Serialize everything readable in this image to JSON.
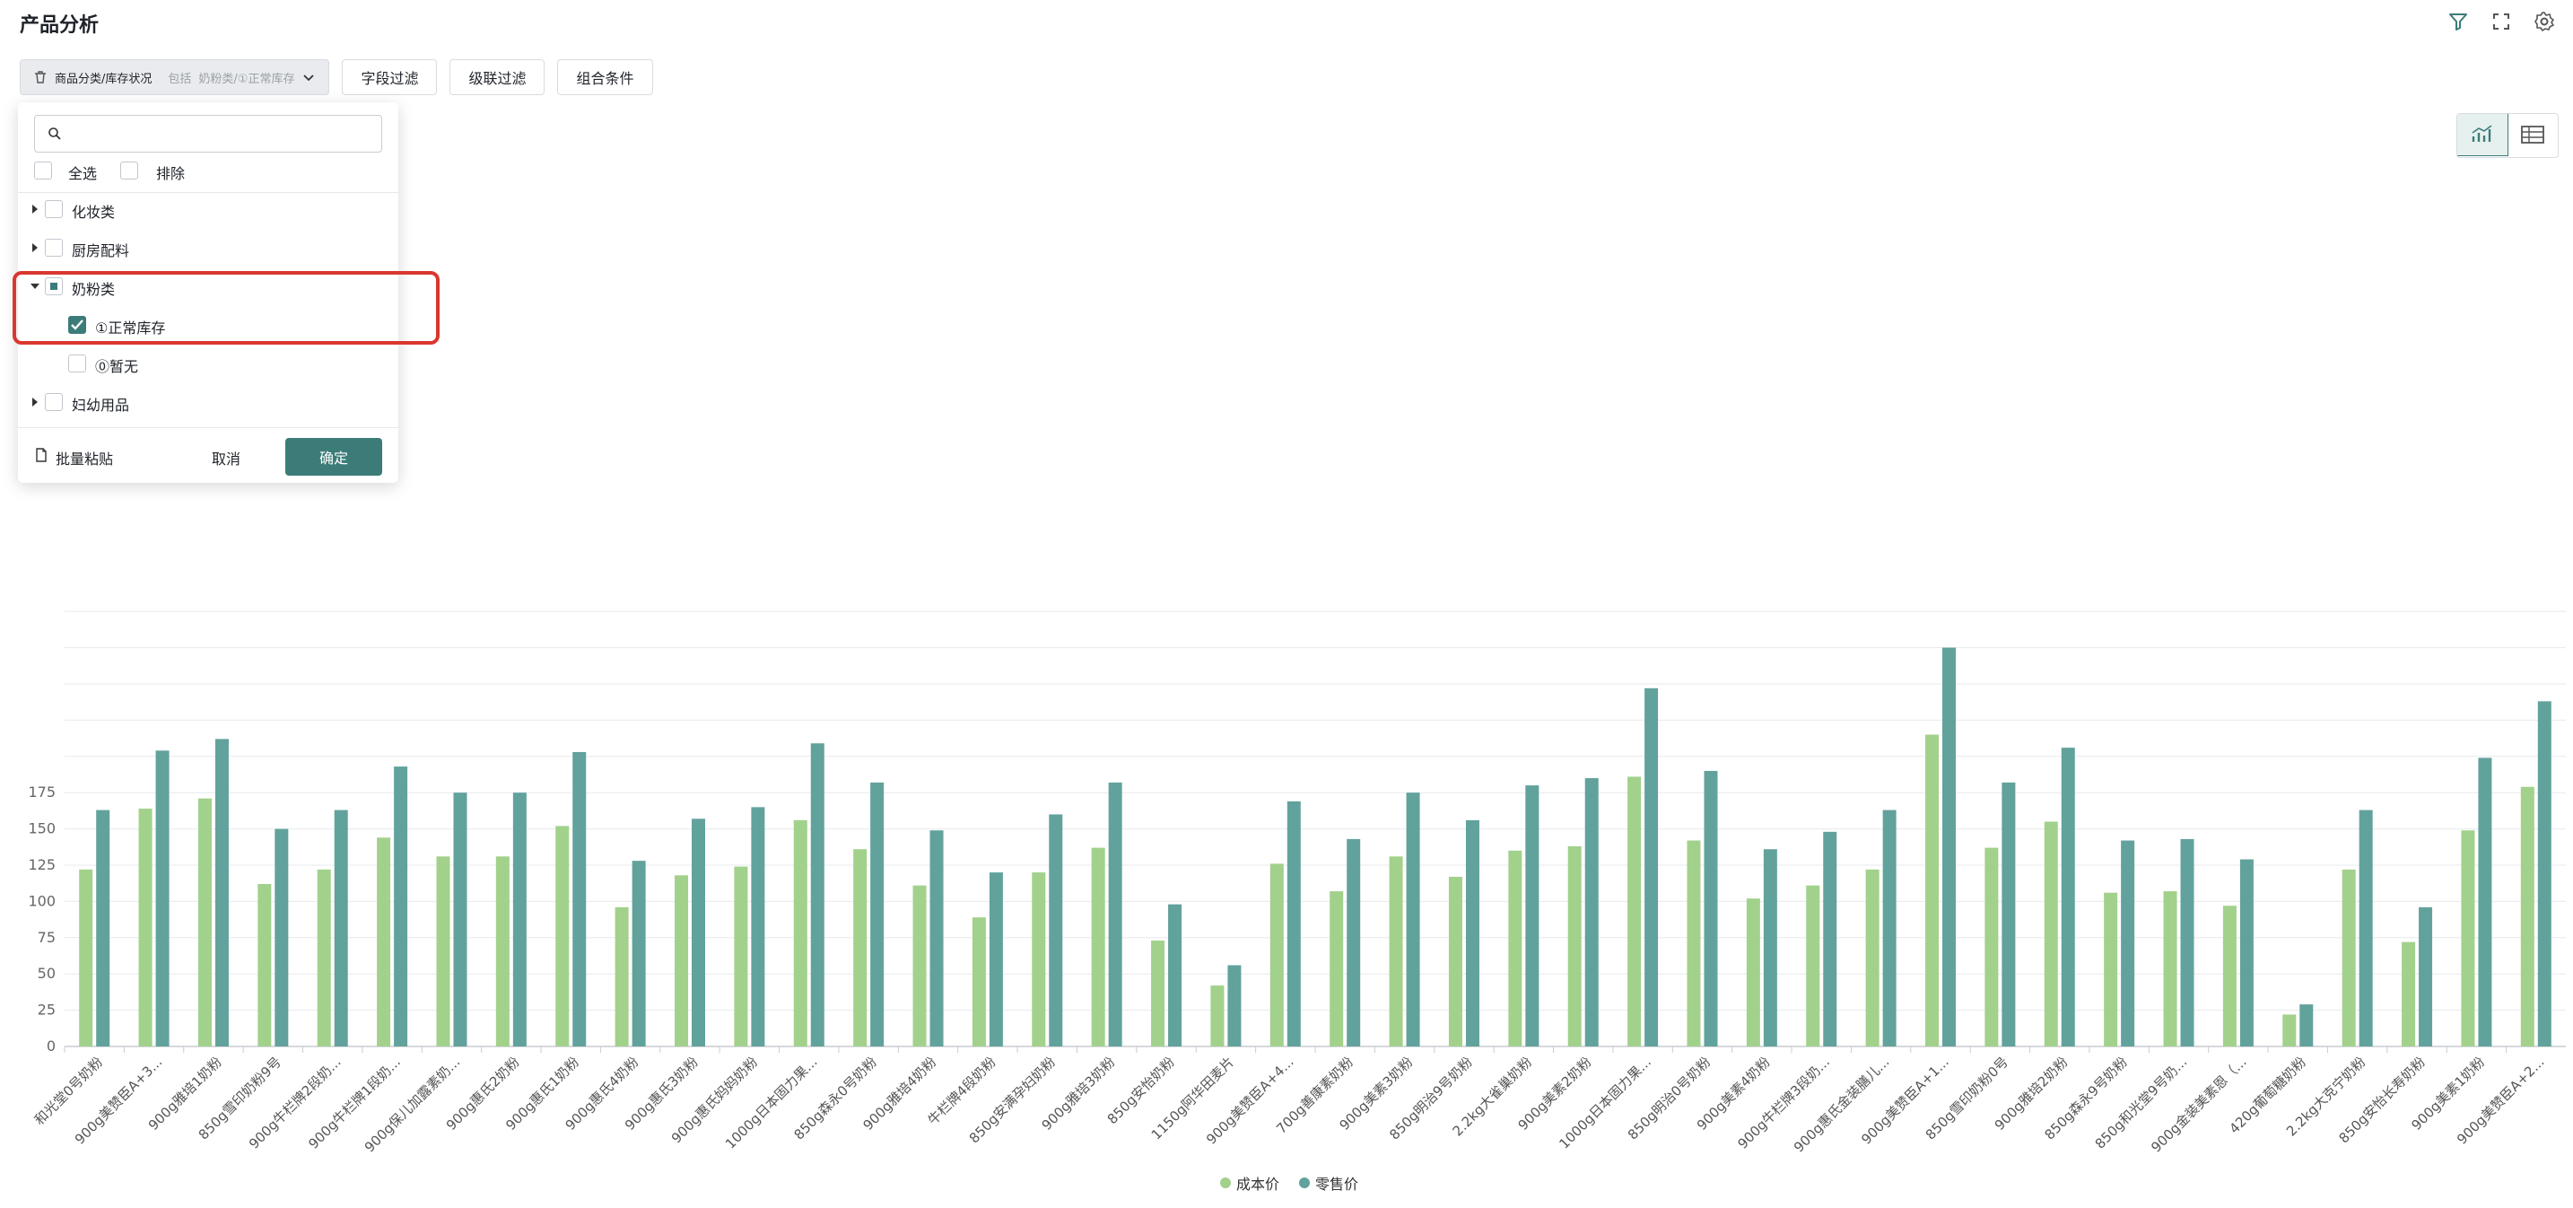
{
  "page": {
    "title": "产品分析"
  },
  "toolbar": {
    "active_filter": {
      "field": "商品分类/库存状况",
      "mode": "包括",
      "value": "奶粉类/①正常库存"
    },
    "buttons": [
      "字段过滤",
      "级联过滤",
      "组合条件"
    ]
  },
  "dropdown": {
    "search_placeholder": "",
    "select_all": "全选",
    "exclude": "排除",
    "tree": [
      {
        "label": "化妆类",
        "expanded": false,
        "state": "unchecked"
      },
      {
        "label": "厨房配料",
        "expanded": false,
        "state": "unchecked"
      },
      {
        "label": "奶粉类",
        "expanded": true,
        "state": "partial"
      },
      {
        "label": "①正常库存",
        "child": true,
        "state": "checked"
      },
      {
        "label": "⓪暂无",
        "child": true,
        "state": "unchecked"
      },
      {
        "label": "妇幼用品",
        "expanded": false,
        "state": "unchecked"
      }
    ],
    "paste_label": "批量粘贴",
    "cancel_label": "取消",
    "confirm_label": "确定"
  },
  "colors": {
    "accent": "#3b7c78",
    "cost": "#a2d18b",
    "retail": "#62a29c",
    "highlight": "#d9372f"
  },
  "chart_data": {
    "type": "bar",
    "y_ticks": [
      0,
      25,
      50,
      75,
      100,
      125,
      150,
      175
    ],
    "ylim": [
      0,
      300
    ],
    "grid": true,
    "legend_position": "bottom",
    "categories": [
      "和光堂0号奶粉",
      "900g美赞臣A+3...",
      "900g雅培1奶粉",
      "850g雪印奶粉9号",
      "900g牛栏牌2段奶...",
      "900g牛栏牌1段奶...",
      "900g保儿加露素奶...",
      "900g惠氏2奶粉",
      "900g惠氏1奶粉",
      "900g惠氏4奶粉",
      "900g惠氏3奶粉",
      "900g惠氏妈妈奶粉",
      "1000g日本固力果...",
      "850g森永0号奶粉",
      "900g雅培4奶粉",
      "牛栏牌4段奶粉",
      "850g安满孕妇奶粉",
      "900g雅培3奶粉",
      "850g安怡奶粉",
      "1150g阿华田麦片",
      "900g美赞臣A+4...",
      "700g善康素奶粉",
      "900g美素3奶粉",
      "850g明治9号奶粉",
      "2.2kg大雀巢奶粉",
      "900g美素2奶粉",
      "1000g日本固力果...",
      "850g明治0号奶粉",
      "900g美素4奶粉",
      "900g牛栏牌3段奶...",
      "900g惠氏金装膳儿...",
      "900g美赞臣A+1...",
      "850g雪印奶粉0号",
      "900g雅培2奶粉",
      "850g森永9号奶粉",
      "850g和光堂9号奶...",
      "900g金装美素恩（...",
      "420g葡萄糖奶粉",
      "2.2kg大克宁奶粉",
      "850g安怡长寿奶粉",
      "900g美素1奶粉",
      "900g美赞臣A+2..."
    ],
    "series": [
      {
        "name": "成本价",
        "values": [
          122,
          164,
          171,
          112,
          122,
          144,
          131,
          131,
          152,
          96,
          118,
          124,
          156,
          136,
          111,
          89,
          120,
          137,
          73,
          42,
          126,
          107,
          131,
          117,
          135,
          138,
          186,
          142,
          102,
          111,
          122,
          215,
          137,
          155,
          106,
          107,
          97,
          22,
          122,
          72,
          149,
          179
        ]
      },
      {
        "name": "零售价",
        "values": [
          163,
          204,
          212,
          150,
          163,
          193,
          175,
          175,
          203,
          128,
          157,
          165,
          209,
          182,
          149,
          120,
          160,
          182,
          98,
          56,
          169,
          143,
          175,
          156,
          180,
          185,
          247,
          190,
          136,
          148,
          163,
          275,
          182,
          206,
          142,
          143,
          129,
          29,
          163,
          96,
          199,
          238
        ]
      }
    ]
  }
}
